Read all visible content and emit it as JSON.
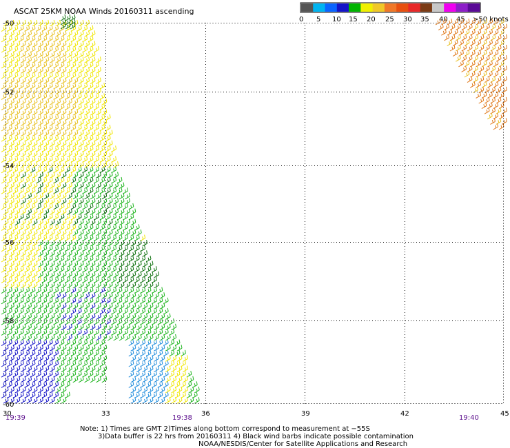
{
  "header": {
    "title": "ASCAT 25KM NOAA Winds 20160311 ascending"
  },
  "colorbar": {
    "colors": [
      "#555555",
      "#00b4f0",
      "#0a64ff",
      "#1414c8",
      "#00b400",
      "#f0f000",
      "#f0c828",
      "#f07828",
      "#e85010",
      "#e82828",
      "#7a3a14",
      "#c8c8c8",
      "#f000f0",
      "#8c1ec8",
      "#5a0a96"
    ],
    "labels": [
      "0",
      "5",
      "10",
      "15",
      "20",
      "25",
      "30",
      "35",
      "40",
      "45",
      ">50 knots"
    ]
  },
  "axes": {
    "y_labels": [
      "-50",
      "-52",
      "-54",
      "-56",
      "-58",
      "-60"
    ],
    "x_labels": [
      "30",
      "33",
      "36",
      "39",
      "42",
      "45"
    ],
    "time_labels": [
      "19:39",
      "19:38",
      "19:40"
    ]
  },
  "notes": {
    "line1": "Note: 1) Times are GMT 2)Times along bottom correspond to measurement at −55S",
    "line2": "3)Data buffer is 22 hrs from 20160311 4) Black wind barbs indicate possible contamination",
    "line3": "NOAA/NESDIS/Center for Satellite Applications and Research"
  },
  "wind_colors": {
    "yellow": "#f0e600",
    "gold": "#e8c020",
    "orange": "#e07818",
    "green": "#1eb41e",
    "dark_green": "#0a6e0a",
    "blue": "#1414c8",
    "light_blue": "#1e8cdc"
  }
}
